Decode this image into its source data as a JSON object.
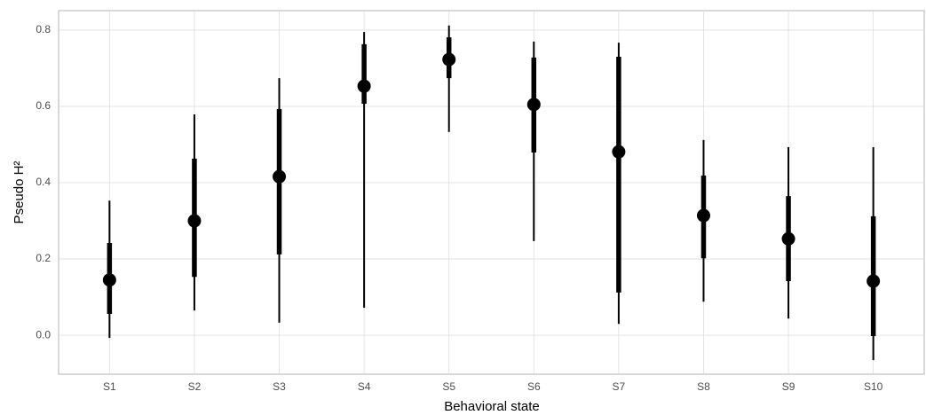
{
  "chart_data": {
    "type": "pointrange",
    "categories": [
      "S1",
      "S2",
      "S3",
      "S4",
      "S5",
      "S6",
      "S7",
      "S8",
      "S9",
      "S10"
    ],
    "values": [
      0.145,
      0.3,
      0.416,
      0.653,
      0.723,
      0.605,
      0.481,
      0.314,
      0.253,
      0.142
    ],
    "inner_low": [
      0.056,
      0.153,
      0.212,
      0.607,
      0.674,
      0.479,
      0.112,
      0.202,
      0.142,
      -0.002
    ],
    "inner_high": [
      0.242,
      0.463,
      0.593,
      0.763,
      0.781,
      0.728,
      0.73,
      0.419,
      0.365,
      0.312
    ],
    "outer_low": [
      -0.007,
      0.065,
      0.033,
      0.072,
      0.533,
      0.247,
      0.03,
      0.088,
      0.044,
      -0.065
    ],
    "outer_high": [
      0.353,
      0.579,
      0.674,
      0.795,
      0.812,
      0.77,
      0.767,
      0.512,
      0.493,
      0.493
    ],
    "color": "#000000",
    "x_label": "Behavioral state",
    "y_label": "Pseudo H²",
    "ylim": [
      -0.102,
      0.851
    ],
    "yticks": [
      {
        "value": 0,
        "label": "0.0"
      },
      0.2,
      0.4,
      0.6,
      0.8
    ],
    "grid": true
  }
}
